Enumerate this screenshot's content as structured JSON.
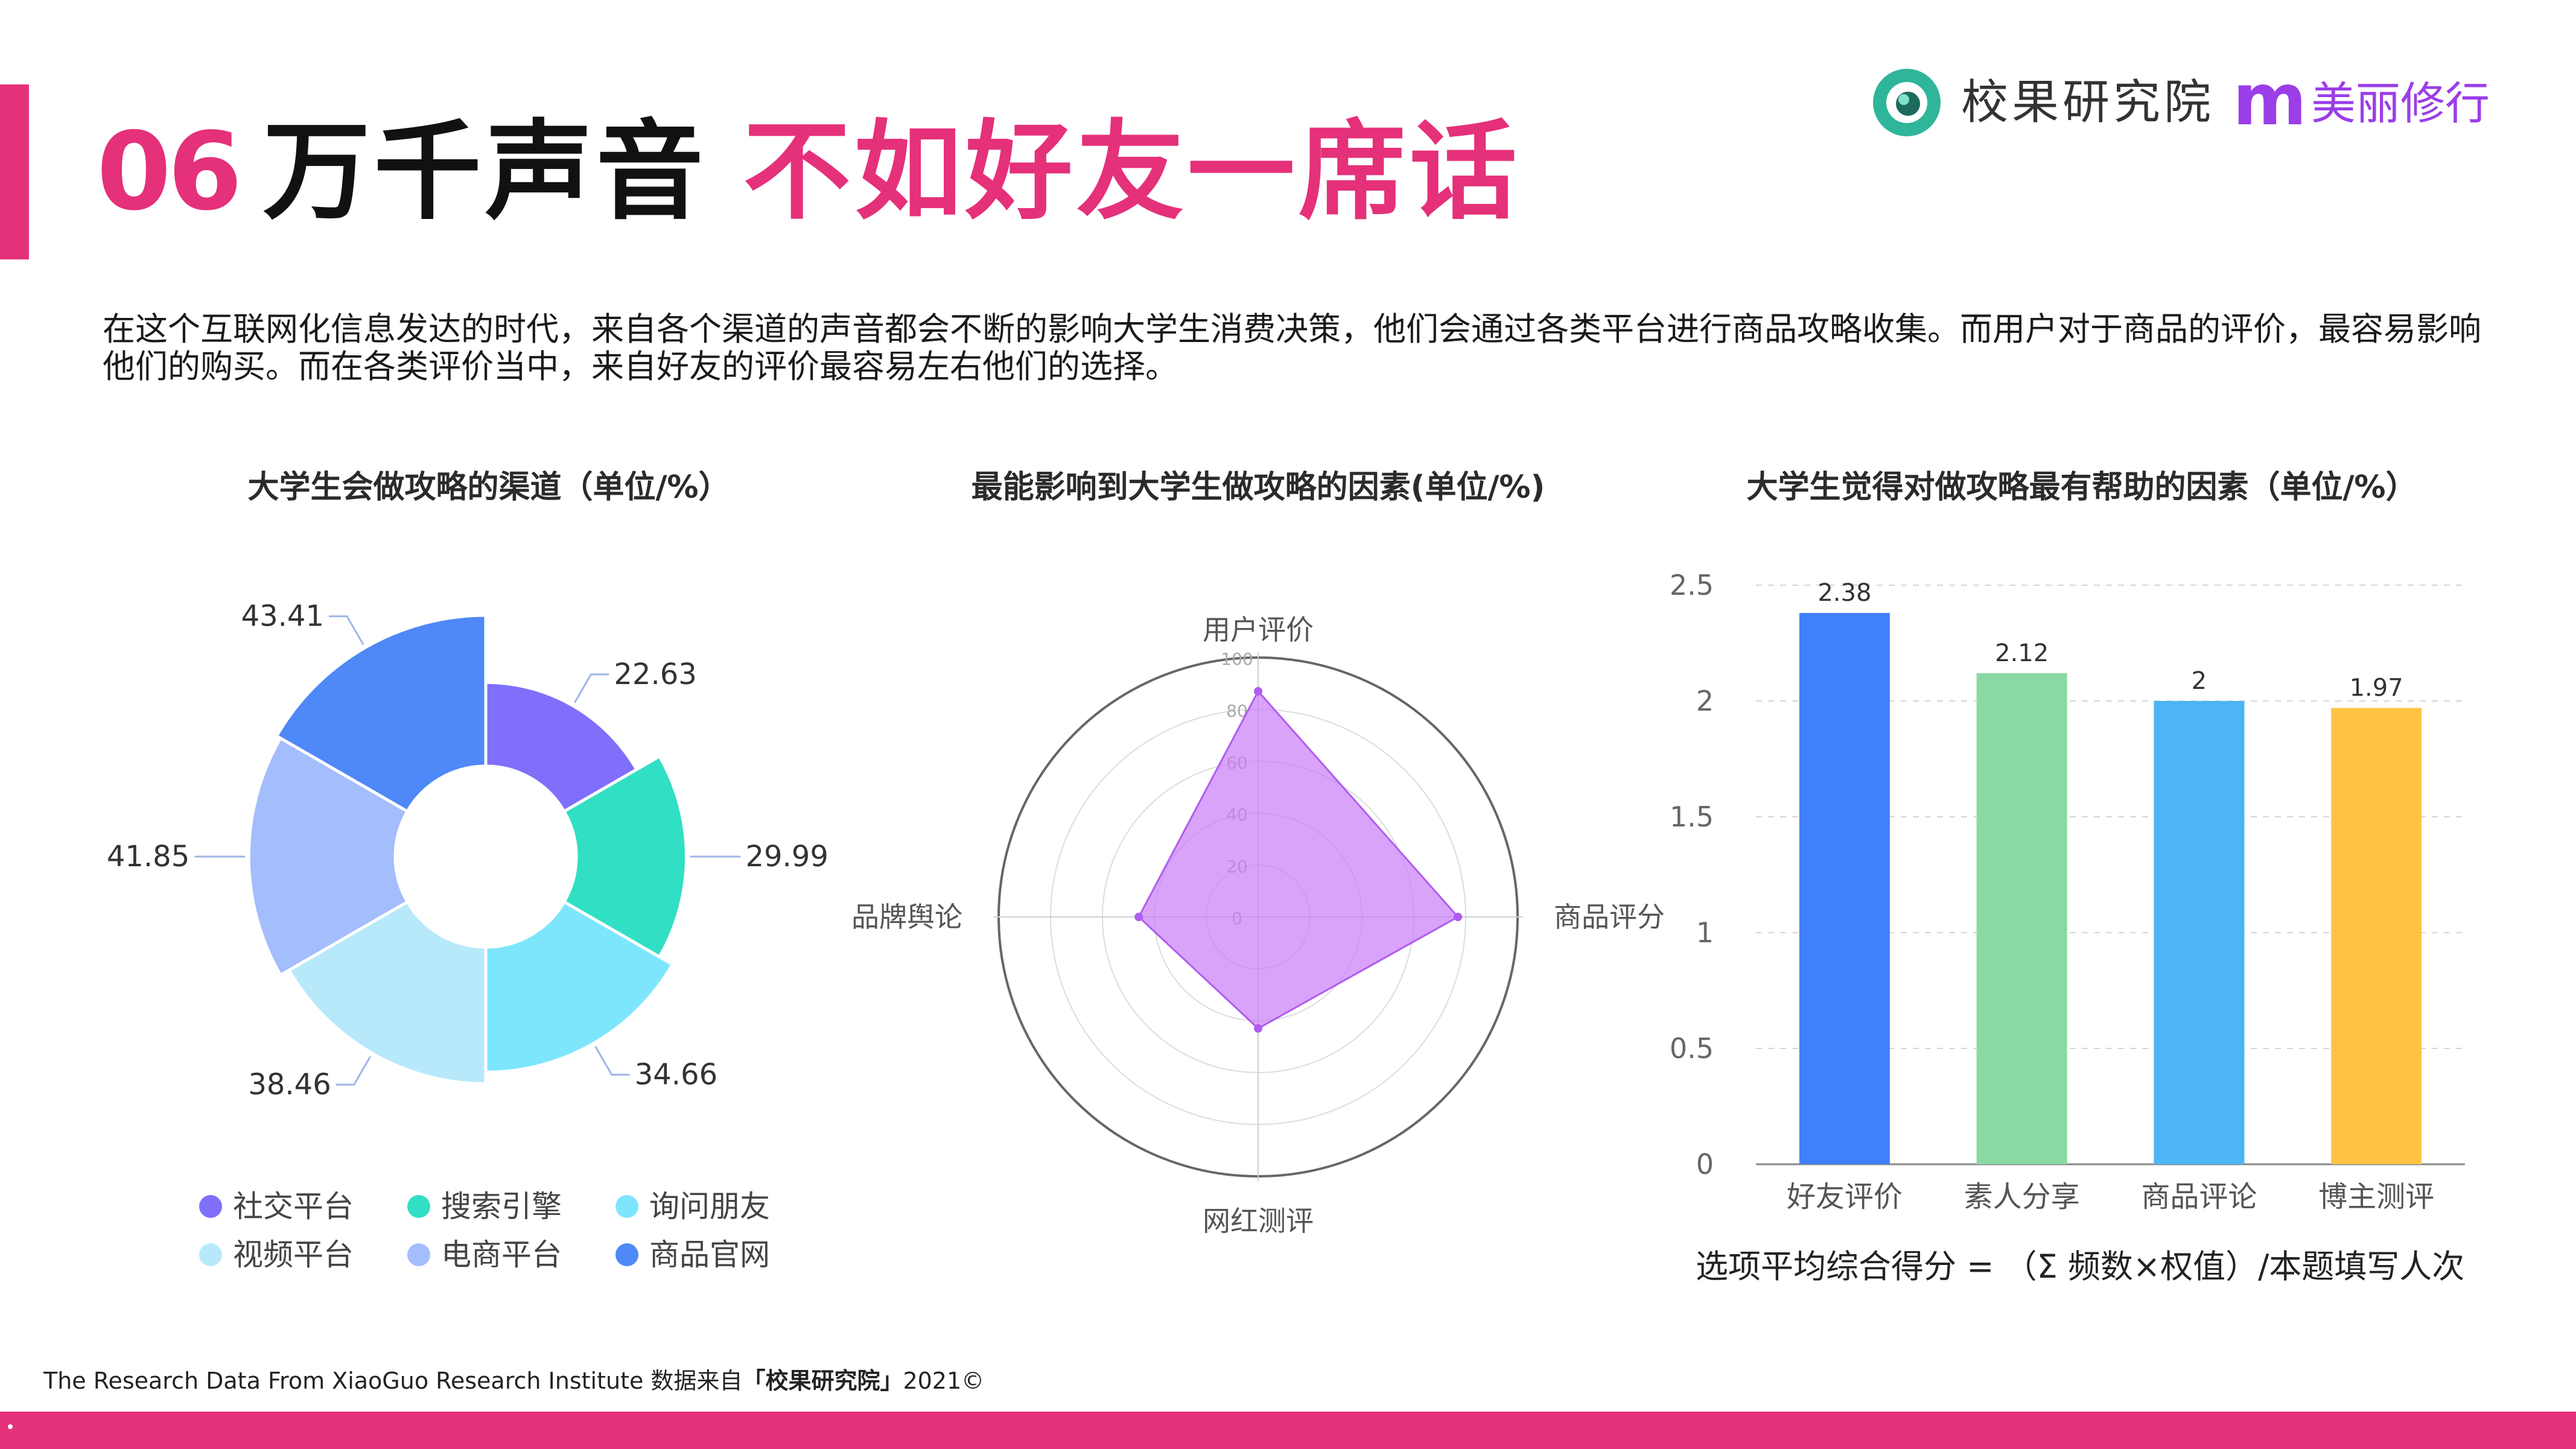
{
  "header": {
    "number": "06",
    "title_black": "万千声音",
    "title_pink": "不如好友一席话"
  },
  "logo": {
    "brand": "校果研究院",
    "partner_mark": "m",
    "partner_name": "美丽修行"
  },
  "intro": "在这个互联网化信息发达的时代，来自各个渠道的声音都会不断的影响大学生消费决策，他们会通过各类平台进行商品攻略收集。而用户对于商品的评价，最容易影响他们的购买。而在各类评价当中，来自好友的评价最容易左右他们的选择。",
  "chart_data": [
    {
      "type": "pie",
      "title": "大学生会做攻略的渠道（单位/%）",
      "donut": true,
      "categories": [
        "社交平台",
        "搜索引擎",
        "询问朋友",
        "视频平台",
        "电商平台",
        "商品官网"
      ],
      "values": [
        22.63,
        29.99,
        34.66,
        38.46,
        41.85,
        43.41
      ],
      "value_labels": [
        "22.63",
        "29.99",
        "34.66",
        "38.46",
        "41.85",
        "43.41"
      ],
      "colors": [
        "#7f6ffa",
        "#31dfc4",
        "#7de6fd",
        "#b7e9fb",
        "#a3bdfd",
        "#4f88f7"
      ],
      "legend_placement": "bottom"
    },
    {
      "type": "radar",
      "title": "最能影响到大学生做攻略的因素(单位/%)",
      "axes": [
        "用户评价",
        "商品评分",
        "网红测评",
        "品牌舆论"
      ],
      "values": [
        87,
        77,
        43,
        46
      ],
      "rlim": [
        0,
        100
      ],
      "ticks": [
        "0",
        "20",
        "40",
        "60",
        "80",
        "100"
      ],
      "color": "#c77cf5"
    },
    {
      "type": "bar",
      "title": "大学生觉得对做攻略最有帮助的因素（单位/%）",
      "categories": [
        "好友评价",
        "素人分享",
        "商品评论",
        "博主测评"
      ],
      "values": [
        2.38,
        2.12,
        2,
        1.97
      ],
      "value_labels": [
        "2.38",
        "2.12",
        "2",
        "1.97"
      ],
      "colors": [
        "#4180fb",
        "#8ad9a2",
        "#4db4f5",
        "#ffc444"
      ],
      "ylim": [
        0,
        2.5
      ],
      "yticks": [
        "0",
        "0.5",
        "1",
        "1.5",
        "2",
        "2.5"
      ],
      "grid": true,
      "note": "选项平均综合得分 = （Σ 频数×权值）/本题填写人次"
    }
  ],
  "footer": {
    "source_prefix": "The Research Data From XiaoGuo Research Institute 数据来自",
    "source_bold": "「校果研究院」",
    "source_suffix": "2021©"
  }
}
